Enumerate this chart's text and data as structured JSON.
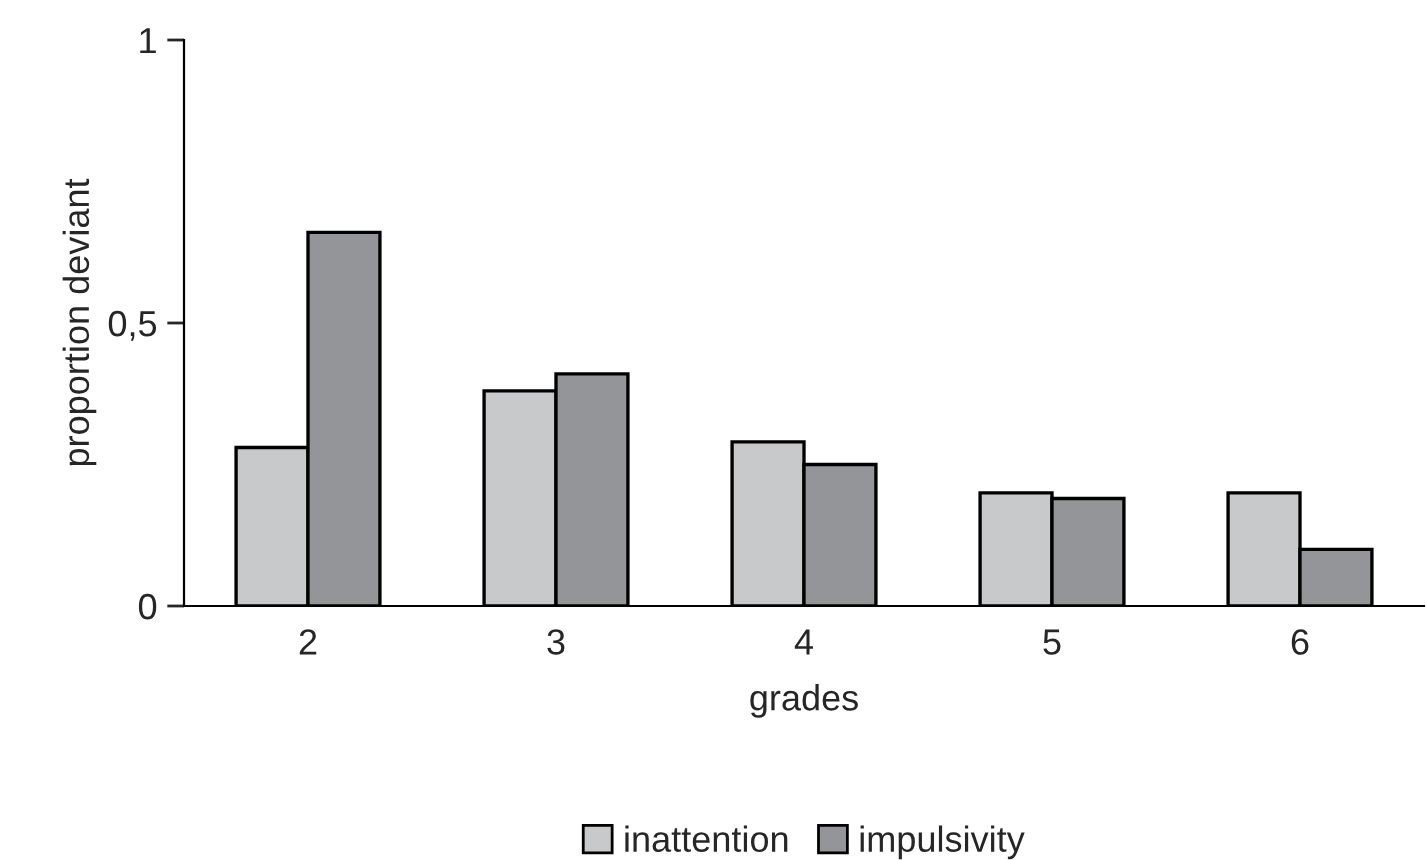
{
  "chart_data": {
    "type": "bar",
    "xlabel": "grades",
    "ylabel": "proportion deviant",
    "categories": [
      "2",
      "3",
      "4",
      "5",
      "6"
    ],
    "series": [
      {
        "name": "inattention",
        "color": "#c8c9cb",
        "values": [
          0.28,
          0.38,
          0.29,
          0.2,
          0.2
        ]
      },
      {
        "name": "impulsivity",
        "color": "#939598",
        "values": [
          0.66,
          0.41,
          0.25,
          0.19,
          0.1
        ]
      }
    ],
    "ylim": [
      0,
      1
    ],
    "yticks": [
      0,
      {
        "value": 0.5,
        "label": "0,5"
      },
      1
    ],
    "grid": false,
    "legend": "bottom"
  }
}
